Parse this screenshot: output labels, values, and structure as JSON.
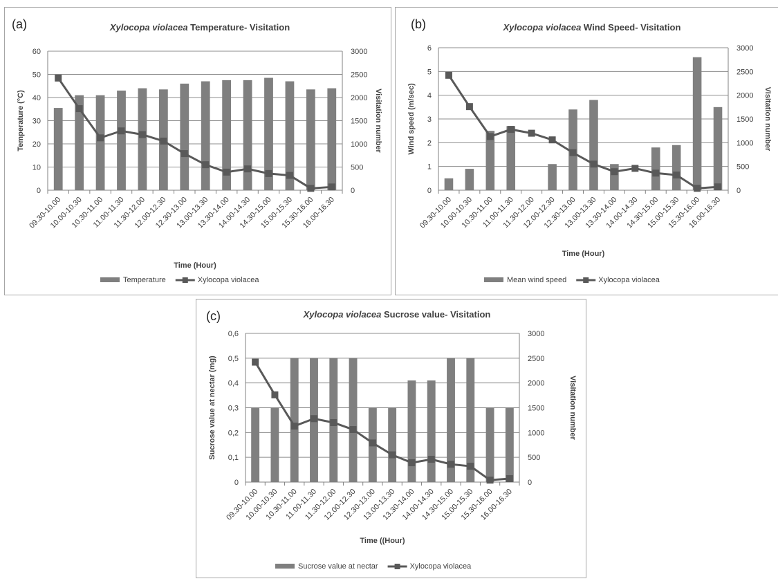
{
  "colors": {
    "bar": "#7f7f7f",
    "line": "#595959",
    "grid": "#8c8c8c",
    "axis": "#808080"
  },
  "chart_data": [
    {
      "id": "a",
      "type": "bar",
      "panel_label": "(a)",
      "title_italic": "Xylocopa violacea",
      "title_rest": " Temperature- Visitation",
      "xlabel": "Time (Hour)",
      "ylabel": "Temperature (°C)",
      "y2label": "Visitation number",
      "categories": [
        "09.30-10.00",
        "10.00-10.30",
        "10.30-11.00",
        "11.00-11.30",
        "11.30-12.00",
        "12.00-12.30",
        "12.30-13.00",
        "13.00-13.30",
        "13.30-14.00",
        "14.00-14.30",
        "14.30-15.00",
        "15.00-15.30",
        "15.30-16.00",
        "16.00-16.30"
      ],
      "yticks": [
        "0",
        "10",
        "20",
        "30",
        "40",
        "50",
        "60"
      ],
      "y2ticks": [
        "0",
        "500",
        "1000",
        "1500",
        "2000",
        "2500",
        "3000"
      ],
      "ylim": [
        0,
        60
      ],
      "y2lim": [
        0,
        3000
      ],
      "grid": true,
      "legend_position": "bottom",
      "series": [
        {
          "name": "Temperature",
          "kind": "bar",
          "axis": "left",
          "values": [
            35.5,
            41,
            41,
            43,
            44,
            43.5,
            46,
            47,
            47.5,
            47.5,
            48.5,
            47,
            43.5,
            44
          ]
        },
        {
          "name": "Xylocopa violacea",
          "kind": "line",
          "axis": "right",
          "values": [
            2420,
            1760,
            1130,
            1280,
            1200,
            1060,
            790,
            550,
            390,
            460,
            360,
            320,
            40,
            70
          ]
        }
      ]
    },
    {
      "id": "b",
      "type": "bar",
      "panel_label": "(b)",
      "title_italic": "Xylocopa violacea",
      "title_rest": " Wind Speed- Visitation",
      "xlabel": "Time (Hour)",
      "ylabel": "Wind speed (m/sec)",
      "y2label": "Visitation number",
      "categories": [
        "09.30-10.00",
        "10.00-10.30",
        "10.30-11.00",
        "11.00-11.30",
        "11.30-12.00",
        "12.00-12.30",
        "12.30-13.00",
        "13.00-13.30",
        "13.30-14.00",
        "14.00-14.30",
        "14.30-15.00",
        "15.00-15.30",
        "15.30-16.00",
        "16.00-16.30"
      ],
      "yticks": [
        "0",
        "1",
        "2",
        "3",
        "4",
        "5",
        "6"
      ],
      "y2ticks": [
        "0",
        "500",
        "1000",
        "1500",
        "2000",
        "2500",
        "3000"
      ],
      "ylim": [
        0,
        6
      ],
      "y2lim": [
        0,
        3000
      ],
      "grid": true,
      "legend_position": "bottom",
      "series": [
        {
          "name": "Mean wind speed",
          "kind": "bar",
          "axis": "left",
          "values": [
            0.5,
            0.9,
            2.5,
            2.7,
            0,
            1.1,
            3.4,
            3.8,
            1.1,
            0,
            1.8,
            1.9,
            5.6,
            3.5
          ]
        },
        {
          "name": "Xylocopa violacea",
          "kind": "line",
          "axis": "right",
          "values": [
            2420,
            1760,
            1130,
            1280,
            1200,
            1060,
            790,
            550,
            390,
            460,
            360,
            320,
            40,
            70
          ]
        }
      ]
    },
    {
      "id": "c",
      "type": "bar",
      "panel_label": "(c)",
      "title_italic": "Xylocopa violacea",
      "title_rest": " Sucrose value- Visitation",
      "xlabel": "Time ((Hour)",
      "ylabel": "Sucrose value at nectar (mg)",
      "y2label": "Visitation number",
      "categories": [
        "09.30-10.00",
        "10.00-10.30",
        "10.30-11.00",
        "11.00-11.30",
        "11.30-12.00",
        "12.00-12.30",
        "12.30-13.00",
        "13.00-13.30",
        "13.30-14.00",
        "14.00-14.30",
        "14.30-15.00",
        "15.00-15.30",
        "15.30-16.00",
        "16.00-16.30"
      ],
      "yticks": [
        "0",
        "0,1",
        "0,2",
        "0,3",
        "0,4",
        "0,5",
        "0,6"
      ],
      "y2ticks": [
        "0",
        "500",
        "1000",
        "1500",
        "2000",
        "2500",
        "3000"
      ],
      "ylim": [
        0,
        0.6
      ],
      "y2lim": [
        0,
        3000
      ],
      "grid": true,
      "legend_position": "bottom",
      "series": [
        {
          "name": "Sucrose value at nectar",
          "kind": "bar",
          "axis": "left",
          "values": [
            0.3,
            0.3,
            0.5,
            0.5,
            0.5,
            0.5,
            0.3,
            0.3,
            0.41,
            0.41,
            0.5,
            0.5,
            0.3,
            0.3
          ]
        },
        {
          "name": "Xylocopa violacea",
          "kind": "line",
          "axis": "right",
          "values": [
            2420,
            1760,
            1130,
            1280,
            1200,
            1060,
            790,
            550,
            390,
            460,
            360,
            320,
            40,
            70
          ]
        }
      ]
    }
  ]
}
